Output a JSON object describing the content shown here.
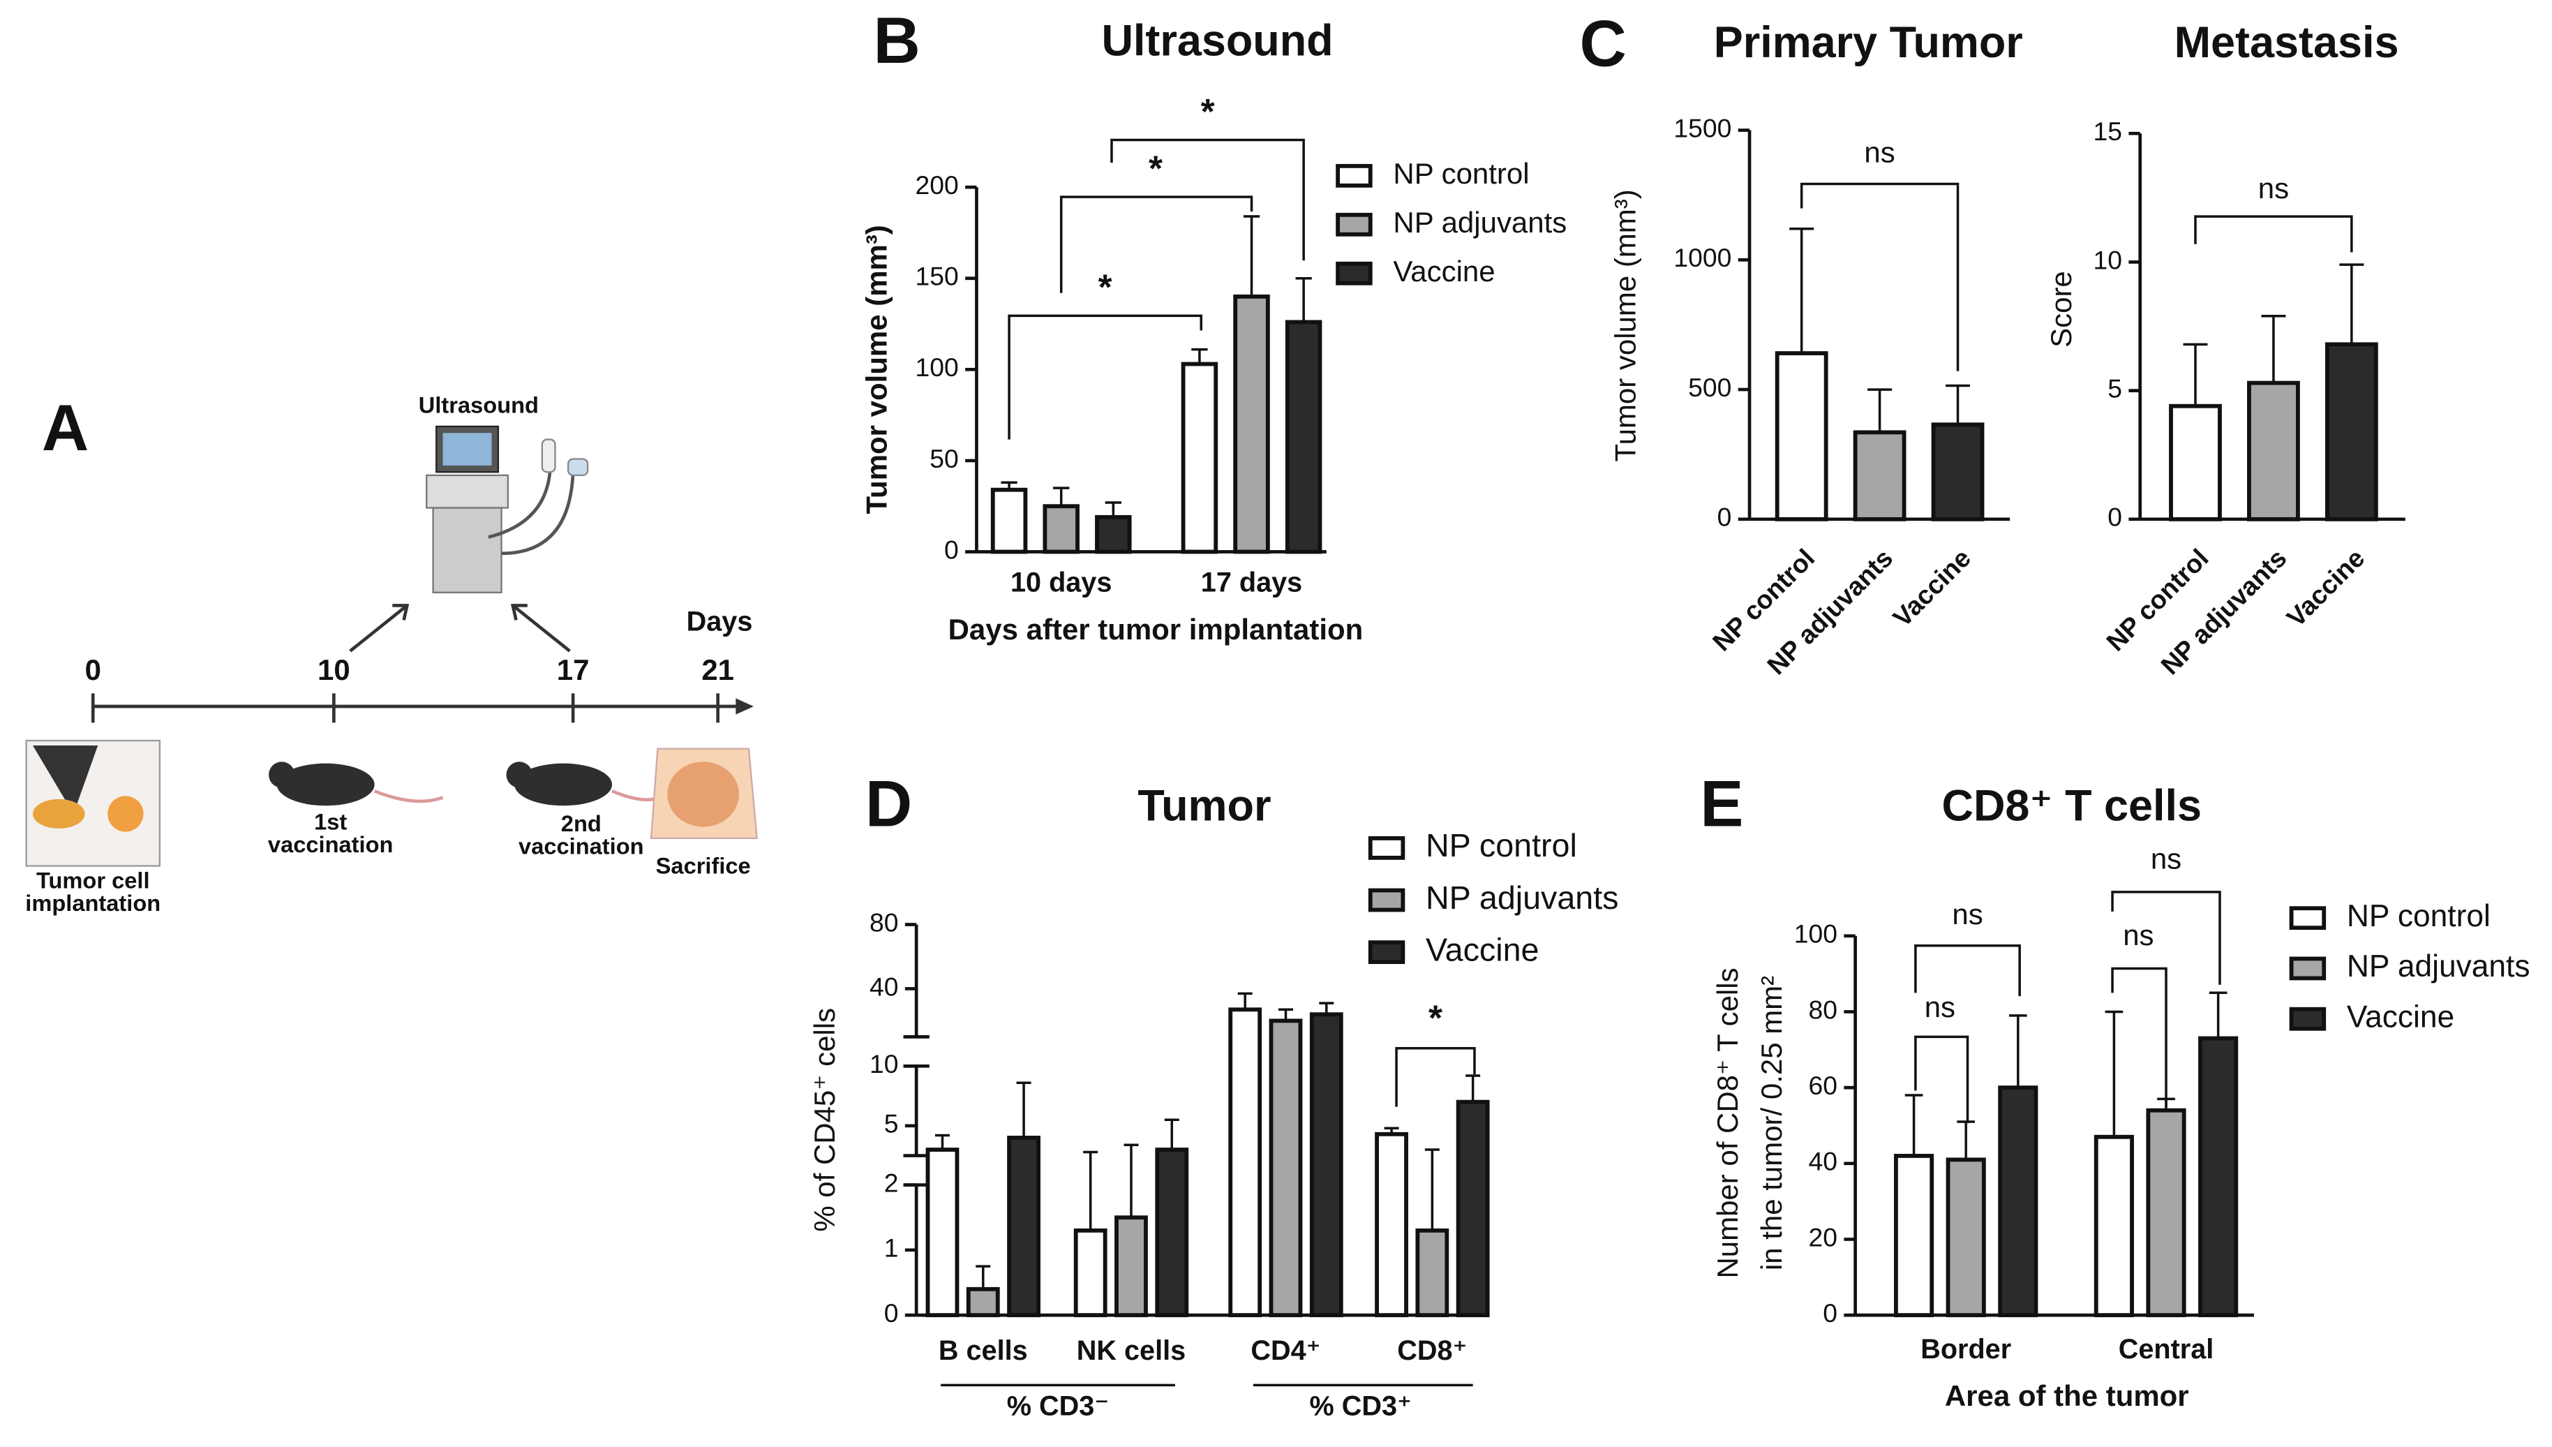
{
  "timeline": {
    "panel": "A",
    "unit": "Days",
    "days": [
      0,
      10,
      17,
      21
    ],
    "imaging": "Ultrasound",
    "events": [
      [
        "Tumor cell",
        "implantation"
      ],
      [
        "1st",
        "vaccination"
      ],
      [
        "2nd",
        "vaccination"
      ],
      [
        "Sacrifice"
      ]
    ]
  },
  "chart_data": [
    {
      "panel": "B",
      "type": "bar",
      "title": "Ultrasound",
      "x_label": "Days after tumor implantation",
      "y_label": "Tumor volume (mm³)",
      "categories": [
        "10 days",
        "17 days"
      ],
      "ylim": [
        0,
        200
      ],
      "yticks": [
        0,
        50,
        100,
        150,
        200
      ],
      "series": [
        {
          "name": "NP control",
          "color": "#ffffff",
          "values": [
            34,
            103
          ],
          "errors": [
            4,
            8
          ]
        },
        {
          "name": "NP adjuvants",
          "color": "#a6a6a6",
          "values": [
            25,
            140
          ],
          "errors": [
            10,
            44
          ]
        },
        {
          "name": "Vaccine",
          "color": "#2b2b2b",
          "values": [
            19,
            126
          ],
          "errors": [
            8,
            24
          ]
        }
      ],
      "annotations": [
        "*",
        "*",
        "*"
      ]
    },
    {
      "panel": "C",
      "type": "bar",
      "title": "Primary  Tumor",
      "y_label": "Tumor volume (mm³)",
      "categories": [
        "NP control",
        "NP adjuvants",
        "Vaccine"
      ],
      "values": [
        640,
        335,
        365
      ],
      "errors": [
        480,
        165,
        150
      ],
      "colors": [
        "#ffffff",
        "#a6a6a6",
        "#2b2b2b"
      ],
      "ylim": [
        0,
        1500
      ],
      "yticks": [
        0,
        500,
        1000,
        1500
      ],
      "annotations": [
        "ns"
      ]
    },
    {
      "type": "bar",
      "title": "Metastasis",
      "y_label": "Score",
      "categories": [
        "NP control",
        "NP adjuvants",
        "Vaccine"
      ],
      "values": [
        4.4,
        5.3,
        6.8
      ],
      "errors": [
        2.4,
        2.6,
        3.1
      ],
      "colors": [
        "#ffffff",
        "#a6a6a6",
        "#2b2b2b"
      ],
      "ylim": [
        0,
        15
      ],
      "yticks": [
        0,
        5,
        10,
        15
      ],
      "annotations": [
        "ns"
      ]
    },
    {
      "panel": "D",
      "type": "bar",
      "title": "Tumor",
      "y_label": "% of CD45⁺ cells",
      "categories": [
        "B cells",
        "NK cells",
        "CD4⁺",
        "CD8⁺"
      ],
      "groups": [
        "% CD3⁻",
        "% CD3⁺"
      ],
      "ysegments": [
        {
          "lim": [
            0,
            2
          ],
          "ticks": [
            0,
            1,
            2
          ]
        },
        {
          "lim": [
            2.5,
            10
          ],
          "ticks": [
            5,
            10
          ]
        },
        {
          "lim": [
            10,
            80
          ],
          "ticks": [
            40,
            80
          ]
        }
      ],
      "series": [
        {
          "name": "NP control",
          "color": "#ffffff",
          "values": [
            3,
            1.3,
            27,
            4.3
          ],
          "errors": [
            1.2,
            1.5,
            10,
            0.5
          ]
        },
        {
          "name": "NP adjuvants",
          "color": "#a6a6a6",
          "values": [
            0.4,
            1.5,
            20,
            1.3
          ],
          "errors": [
            0.35,
            1.9,
            7,
            1.7
          ]
        },
        {
          "name": "Vaccine",
          "color": "#2b2b2b",
          "values": [
            4,
            3,
            24,
            7
          ],
          "errors": [
            4.6,
            2.5,
            7,
            2.2
          ]
        }
      ],
      "annotations": [
        "*"
      ]
    },
    {
      "panel": "E",
      "type": "bar",
      "title": "CD8⁺ T cells",
      "x_label": "Area of the tumor",
      "y_label": [
        "Number of CD8⁺ T cells",
        "in the tumor/ 0.25 mm²"
      ],
      "categories": [
        "Border",
        "Central"
      ],
      "ylim": [
        0,
        100
      ],
      "yticks": [
        0,
        20,
        40,
        60,
        80,
        100
      ],
      "series": [
        {
          "name": "NP control",
          "color": "#ffffff",
          "values": [
            42,
            47
          ],
          "errors": [
            16,
            33
          ]
        },
        {
          "name": "NP adjuvants",
          "color": "#a6a6a6",
          "values": [
            41,
            54
          ],
          "errors": [
            10,
            3
          ]
        },
        {
          "name": "Vaccine",
          "color": "#2b2b2b",
          "values": [
            60,
            73
          ],
          "errors": [
            19,
            12
          ]
        }
      ],
      "annotations": [
        "ns",
        "ns",
        "ns",
        "ns"
      ]
    }
  ]
}
